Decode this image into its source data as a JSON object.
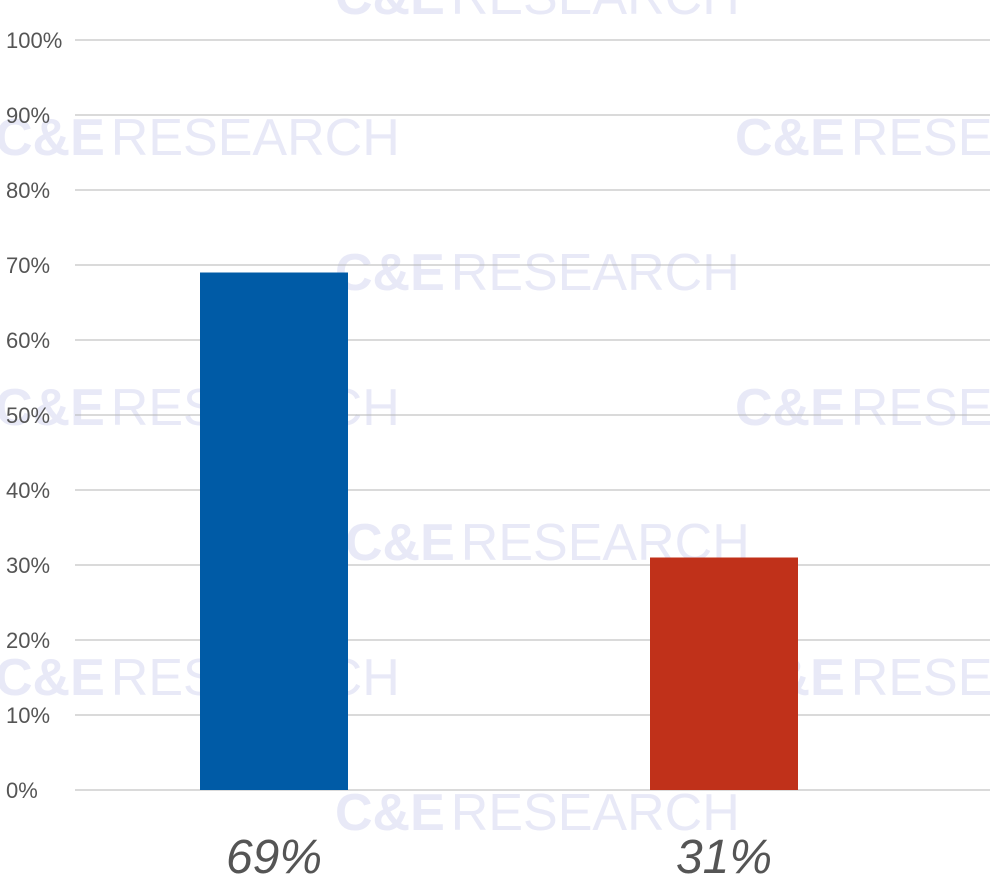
{
  "watermark": {
    "text": "C&E",
    "text2": "RESEARCH",
    "text2_short": "RESEA"
  },
  "colors": {
    "bar1": "#005ba6",
    "bar2": "#c0311a",
    "grid": "#b5b5b5",
    "text": "#555555"
  },
  "chart_data": {
    "type": "bar",
    "categories": [
      "",
      ""
    ],
    "values": [
      69,
      31
    ],
    "data_labels": [
      "69%",
      "31%"
    ],
    "colors": [
      "#005ba6",
      "#c0311a"
    ],
    "ylim": [
      0,
      100
    ],
    "yticks": [
      "0%",
      "10%",
      "20%",
      "30%",
      "40%",
      "50%",
      "60%",
      "70%",
      "80%",
      "90%",
      "100%"
    ],
    "grid": true,
    "title": "",
    "xlabel": "",
    "ylabel": ""
  }
}
